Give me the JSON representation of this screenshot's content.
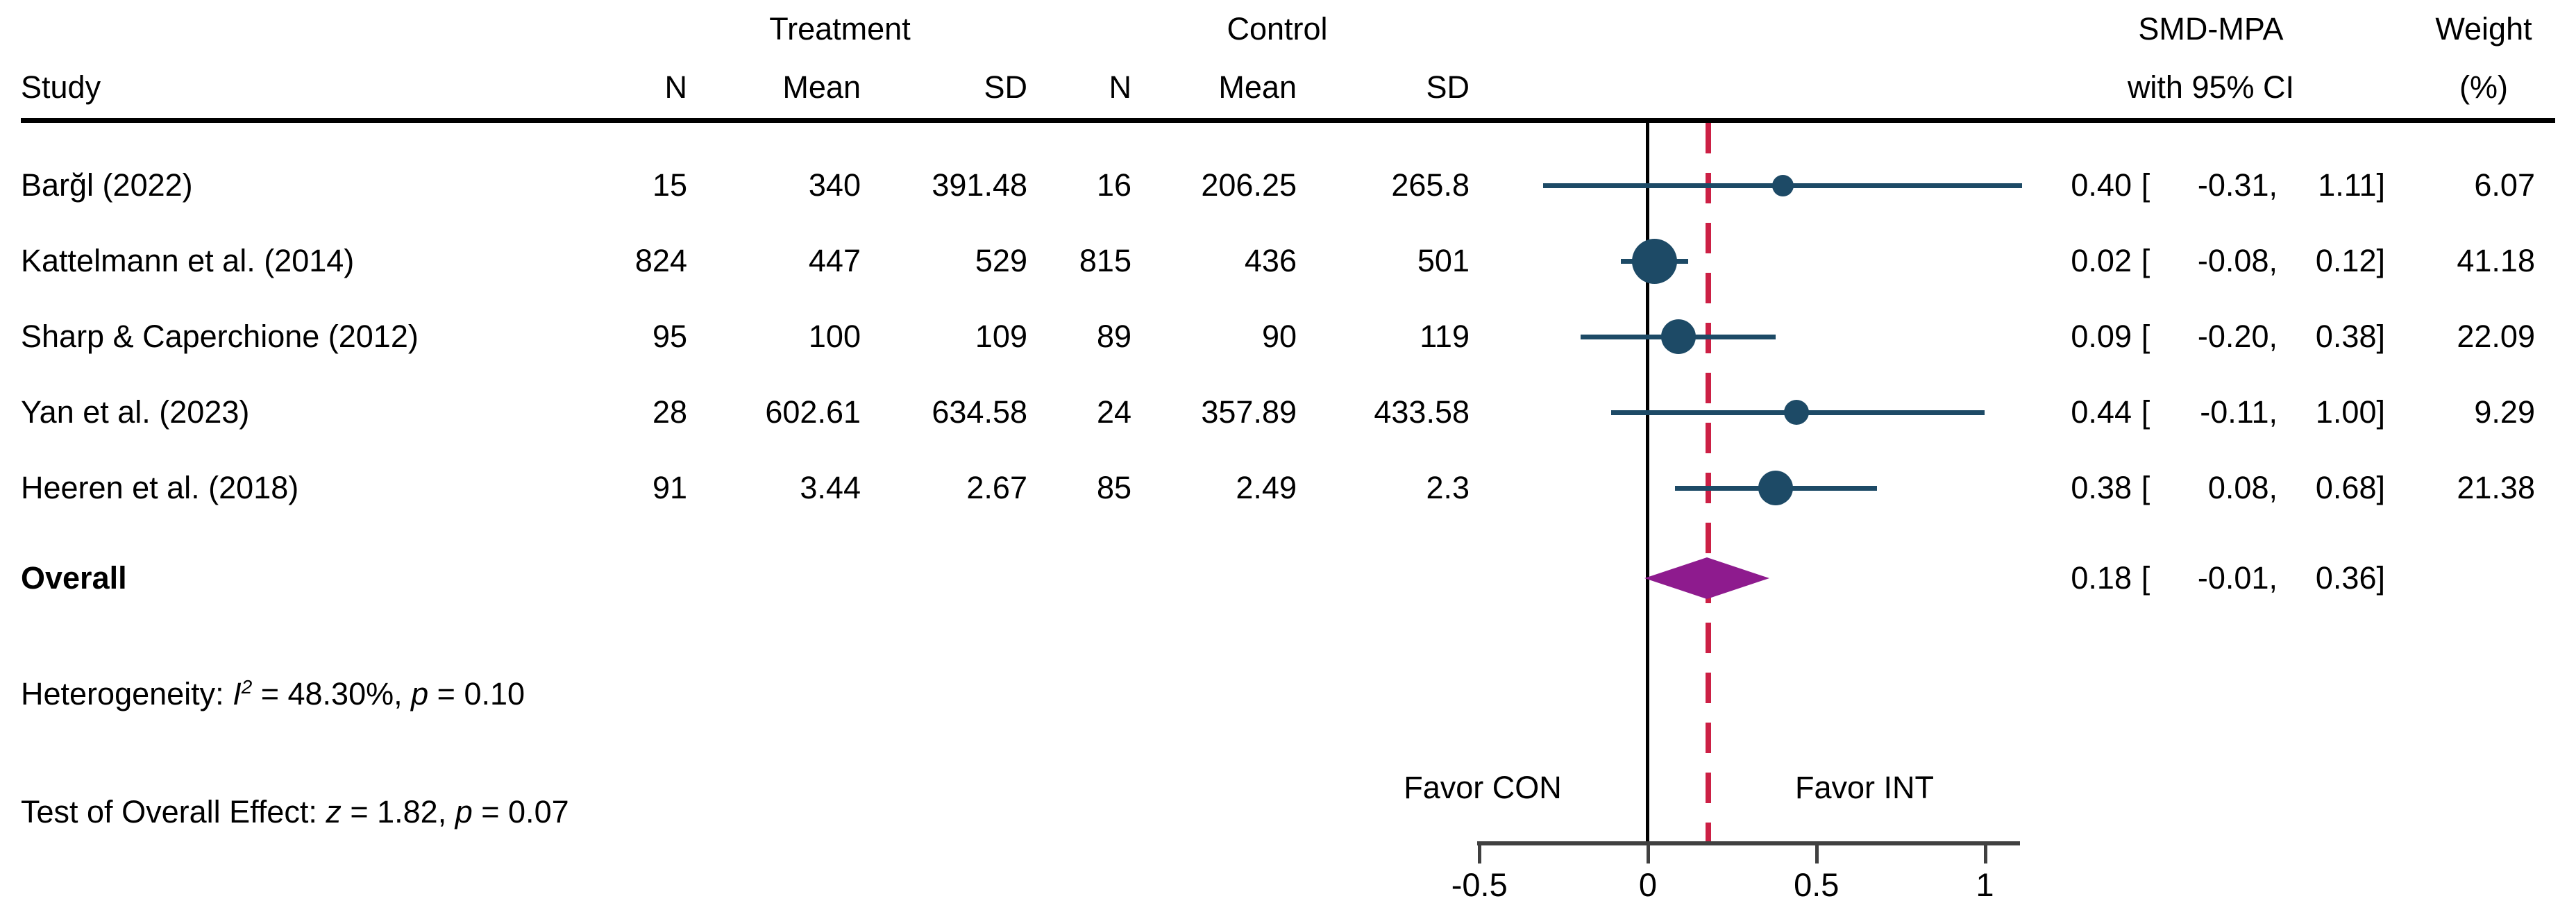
{
  "header": {
    "study": "Study",
    "group_treatment": "Treatment",
    "group_control": "Control",
    "col_n": "N",
    "col_mean": "Mean",
    "col_sd": "SD",
    "smd_line1": "SMD-MPA",
    "smd_line2": "with 95% CI",
    "weight_line1": "Weight",
    "weight_line2": "(%)",
    "bracket_open": "["
  },
  "chart_data": {
    "type": "forest",
    "effect_label": "SMD-MPA",
    "xlim": [
      -0.5,
      1.0
    ],
    "axis_ticks": [
      -0.5,
      0,
      0.5,
      1
    ],
    "axis_tick_labels": [
      "-0.5",
      "0",
      "0.5",
      "1"
    ],
    "reference_line_x": 0,
    "pooled_line_x": 0.18,
    "favor_left": "Favor CON",
    "favor_right": "Favor INT",
    "studies": [
      {
        "name": "Barğl (2022)",
        "t_n": "15",
        "t_mean": "340",
        "t_sd": "391.48",
        "c_n": "16",
        "c_mean": "206.25",
        "c_sd": "265.8",
        "est": 0.4,
        "ci_lo": -0.31,
        "ci_hi": 1.11,
        "est_text": "0.40",
        "lo_text": "-0.31,",
        "hi_text": "1.11]",
        "weight": "6.07"
      },
      {
        "name": "Kattelmann et al. (2014)",
        "t_n": "824",
        "t_mean": "447",
        "t_sd": "529",
        "c_n": "815",
        "c_mean": "436",
        "c_sd": "501",
        "est": 0.02,
        "ci_lo": -0.08,
        "ci_hi": 0.12,
        "est_text": "0.02",
        "lo_text": "-0.08,",
        "hi_text": "0.12]",
        "weight": "41.18"
      },
      {
        "name": "Sharp & Caperchione (2012)",
        "t_n": "95",
        "t_mean": "100",
        "t_sd": "109",
        "c_n": "89",
        "c_mean": "90",
        "c_sd": "119",
        "est": 0.09,
        "ci_lo": -0.2,
        "ci_hi": 0.38,
        "est_text": "0.09",
        "lo_text": "-0.20,",
        "hi_text": "0.38]",
        "weight": "22.09"
      },
      {
        "name": "Yan et al. (2023)",
        "t_n": "28",
        "t_mean": "602.61",
        "t_sd": "634.58",
        "c_n": "24",
        "c_mean": "357.89",
        "c_sd": "433.58",
        "est": 0.44,
        "ci_lo": -0.11,
        "ci_hi": 1.0,
        "est_text": "0.44",
        "lo_text": "-0.11,",
        "hi_text": "1.00]",
        "weight": "9.29"
      },
      {
        "name": "Heeren et al. (2018)",
        "t_n": "91",
        "t_mean": "3.44",
        "t_sd": "2.67",
        "c_n": "85",
        "c_mean": "2.49",
        "c_sd": "2.3",
        "est": 0.38,
        "ci_lo": 0.08,
        "ci_hi": 0.68,
        "est_text": "0.38",
        "lo_text": "0.08,",
        "hi_text": "0.68]",
        "weight": "21.38"
      }
    ],
    "overall": {
      "label": "Overall",
      "est": 0.18,
      "ci_lo": -0.01,
      "ci_hi": 0.36,
      "est_text": "0.18",
      "lo_text": "-0.01,",
      "hi_text": "0.36]"
    },
    "heterogeneity": {
      "i_squared_pct": 48.3,
      "p": 0.1
    },
    "overall_effect_test": {
      "z": 1.82,
      "p": 0.07
    }
  },
  "footnotes": {
    "het_parts": [
      {
        "t": "Heterogeneity: ",
        "style": ""
      },
      {
        "t": "I",
        "style": "i"
      },
      {
        "t": "2",
        "style": "sup"
      },
      {
        "t": " = 48.30%, ",
        "style": ""
      },
      {
        "t": "p",
        "style": "i"
      },
      {
        "t": " = 0.10",
        "style": ""
      }
    ],
    "test_parts": [
      {
        "t": "Test of Overall Effect: ",
        "style": ""
      },
      {
        "t": "z",
        "style": "i"
      },
      {
        "t": " = 1.82, ",
        "style": ""
      },
      {
        "t": "p",
        "style": "i"
      },
      {
        "t": " = 0.07",
        "style": ""
      }
    ]
  },
  "colors": {
    "marker_navy": "#1d4a66",
    "ci_navy": "#1d4a66",
    "diamond_purple": "#8e1b8e",
    "dashed_red": "#cc2045",
    "axis_gray": "#404040",
    "rule_black": "#000000"
  }
}
